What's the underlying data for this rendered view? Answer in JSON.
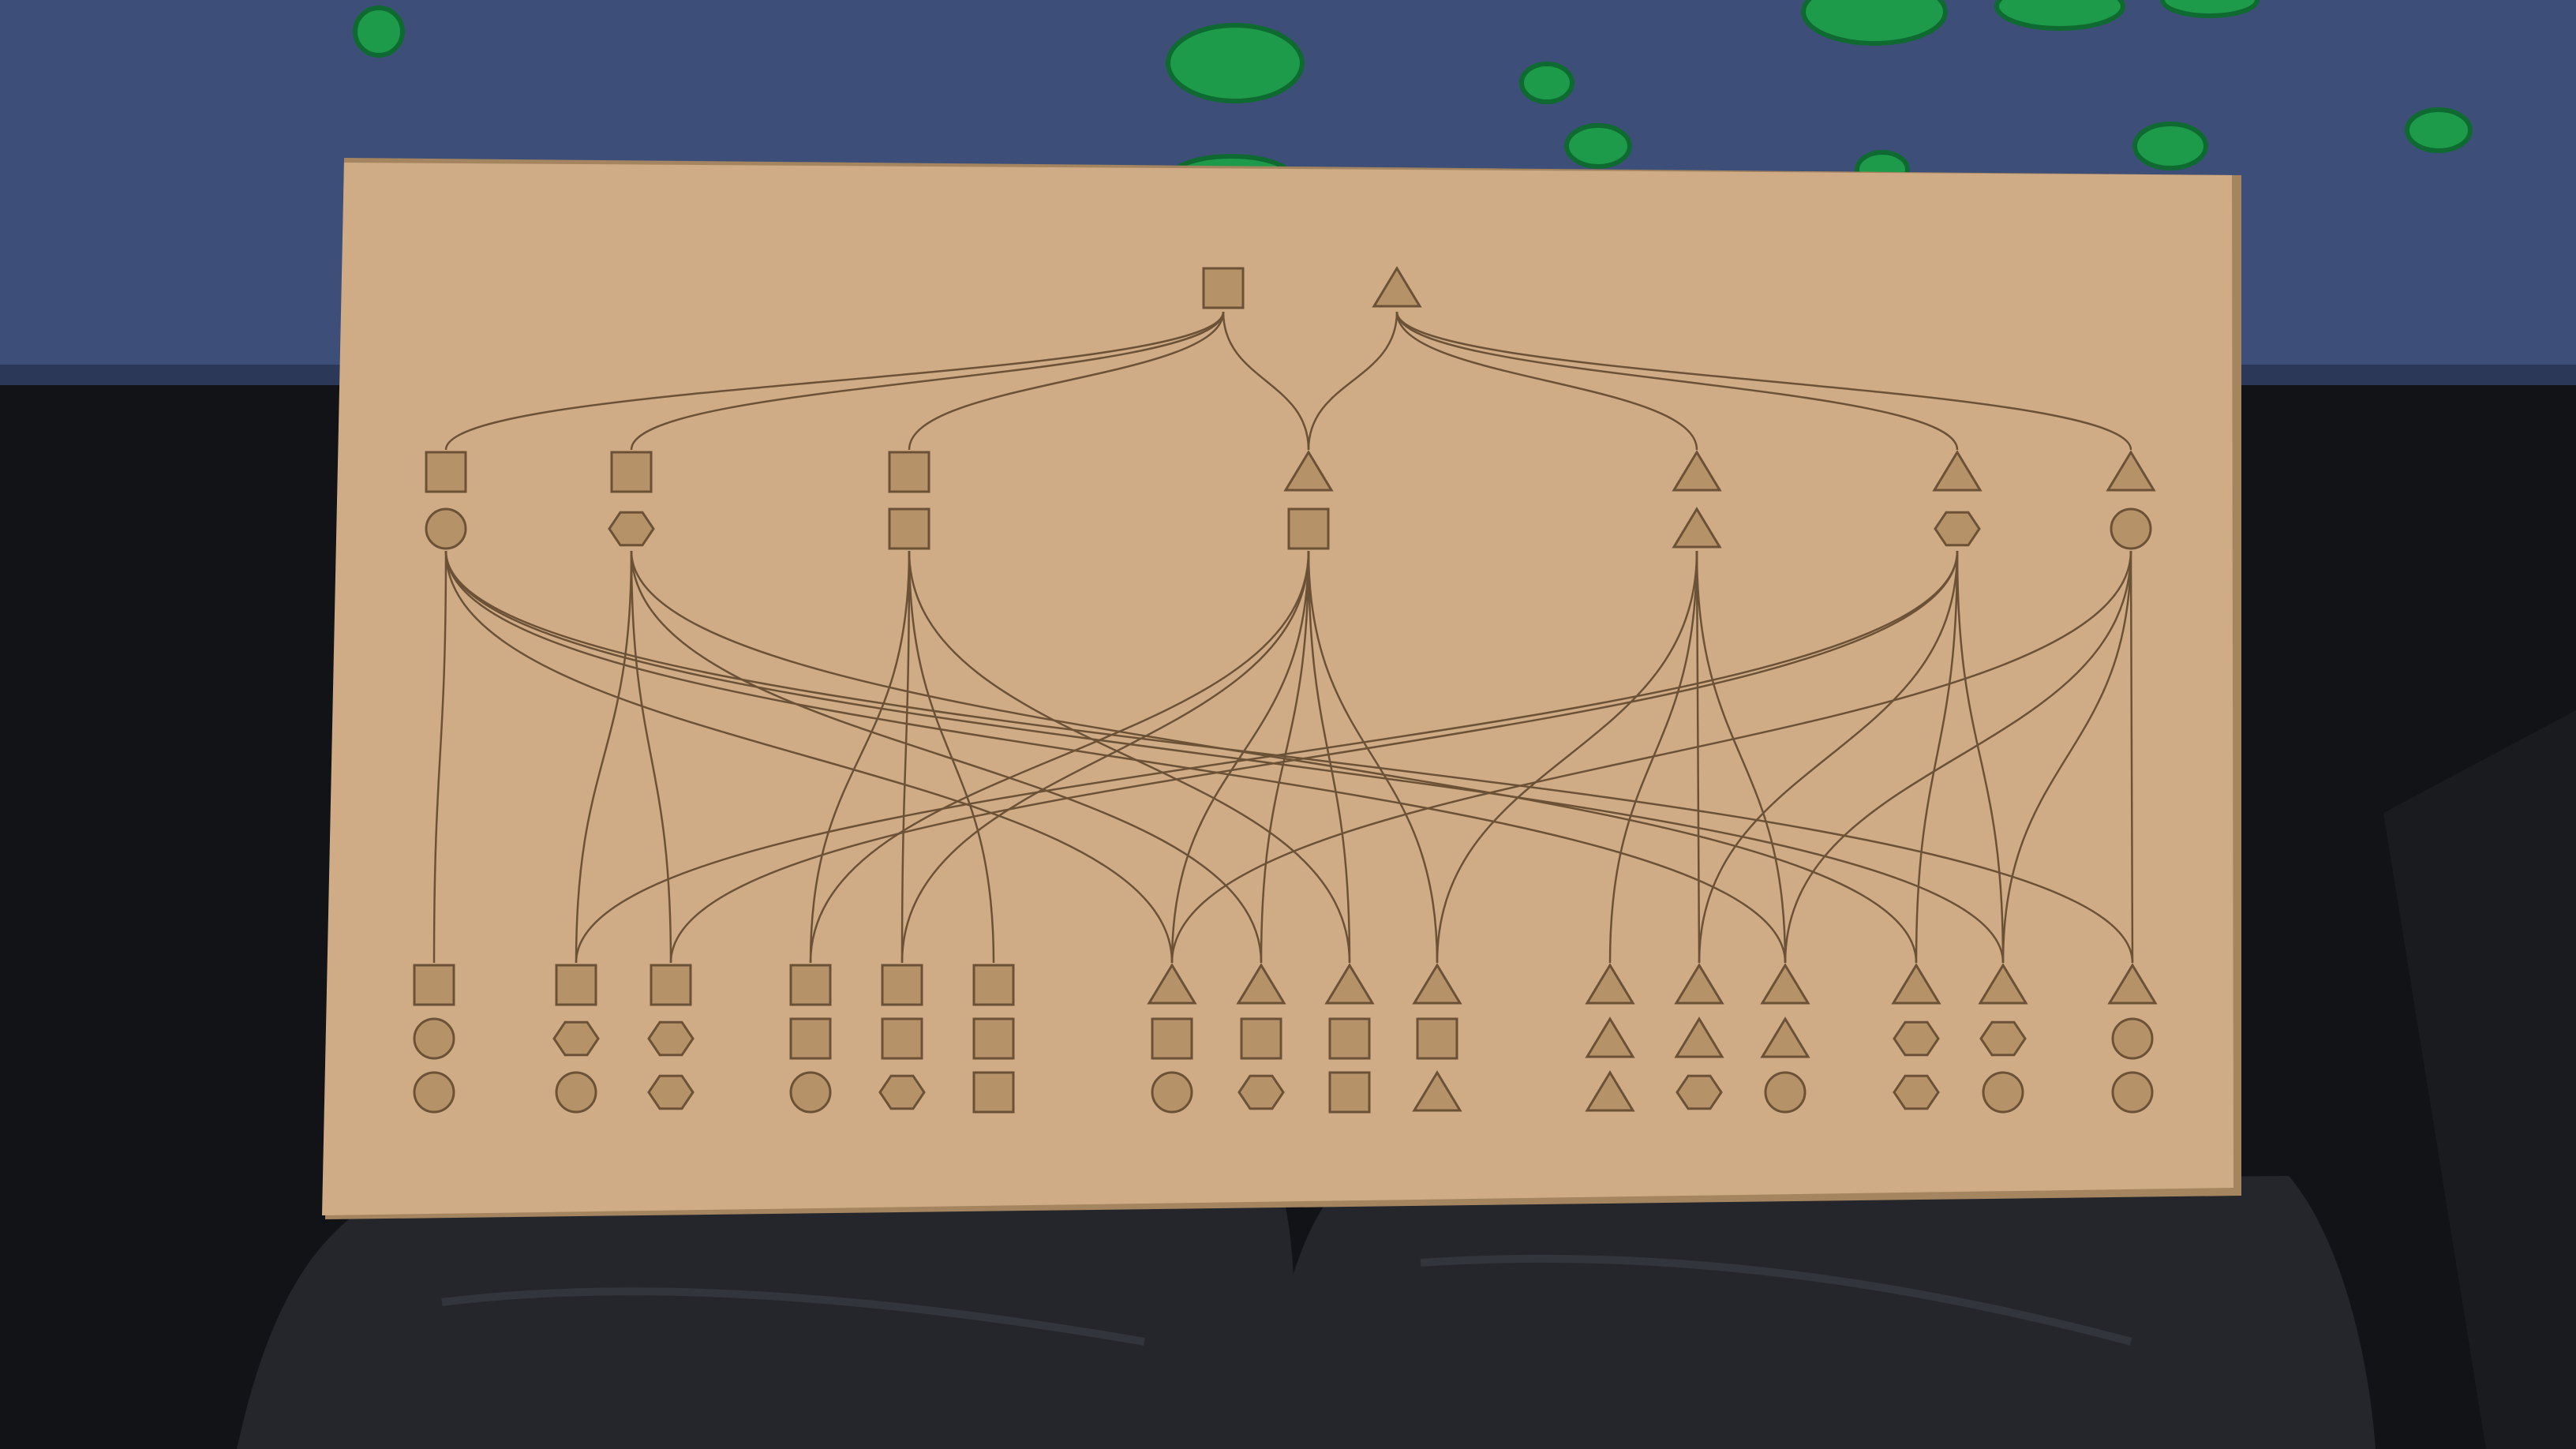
{
  "colors": {
    "table_top": "#3d4f78",
    "table_edge": "#2b3858",
    "background_dark": "#121316",
    "trousers": "#24262b",
    "trousers_fold": "#32353b",
    "board": "#cfac86",
    "board_shadow": "#a5855f",
    "engraving": "#6b5237",
    "shape_fill": "#b69268",
    "tokens": "#1d9a4a",
    "tokens_dark": "#0e6a30"
  },
  "board": {
    "parents": [
      "square",
      "triangle"
    ],
    "children": [
      [
        "square",
        "circle"
      ],
      [
        "square",
        "hexagon"
      ],
      [
        "square",
        "square"
      ],
      [
        "triangle",
        "square"
      ],
      [
        "triangle",
        "triangle"
      ],
      [
        "triangle",
        "hexagon"
      ],
      [
        "triangle",
        "circle"
      ]
    ],
    "grandchildren": [
      [
        "square",
        "circle",
        "circle"
      ],
      [
        "square",
        "hexagon",
        "circle"
      ],
      [
        "square",
        "hexagon",
        "hexagon"
      ],
      [
        "square",
        "square",
        "circle"
      ],
      [
        "square",
        "square",
        "hexagon"
      ],
      [
        "square",
        "square",
        "square"
      ],
      [
        "triangle",
        "square",
        "circle"
      ],
      [
        "triangle",
        "square",
        "hexagon"
      ],
      [
        "triangle",
        "square",
        "square"
      ],
      [
        "triangle",
        "square",
        "triangle"
      ],
      [
        "triangle",
        "triangle",
        "triangle"
      ],
      [
        "triangle",
        "triangle",
        "hexagon"
      ],
      [
        "triangle",
        "triangle",
        "circle"
      ],
      [
        "triangle",
        "hexagon",
        "hexagon"
      ],
      [
        "triangle",
        "hexagon",
        "circle"
      ],
      [
        "triangle",
        "circle",
        "circle"
      ]
    ],
    "parent_child_links": [
      [
        0,
        0
      ],
      [
        0,
        1
      ],
      [
        0,
        2
      ],
      [
        0,
        3
      ],
      [
        1,
        3
      ],
      [
        1,
        4
      ],
      [
        1,
        5
      ],
      [
        1,
        6
      ]
    ],
    "child_grandchild_links": [
      [
        0,
        0
      ],
      [
        0,
        6
      ],
      [
        0,
        12
      ],
      [
        0,
        14
      ],
      [
        0,
        15
      ],
      [
        1,
        1
      ],
      [
        1,
        2
      ],
      [
        1,
        7
      ],
      [
        1,
        13
      ],
      [
        2,
        3
      ],
      [
        2,
        4
      ],
      [
        2,
        5
      ],
      [
        2,
        8
      ],
      [
        3,
        3
      ],
      [
        3,
        4
      ],
      [
        3,
        6
      ],
      [
        3,
        7
      ],
      [
        3,
        8
      ],
      [
        3,
        9
      ],
      [
        4,
        9
      ],
      [
        4,
        10
      ],
      [
        4,
        11
      ],
      [
        4,
        12
      ],
      [
        5,
        1
      ],
      [
        5,
        2
      ],
      [
        5,
        11
      ],
      [
        5,
        13
      ],
      [
        5,
        14
      ],
      [
        6,
        6
      ],
      [
        6,
        12
      ],
      [
        6,
        14
      ],
      [
        6,
        15
      ]
    ]
  }
}
